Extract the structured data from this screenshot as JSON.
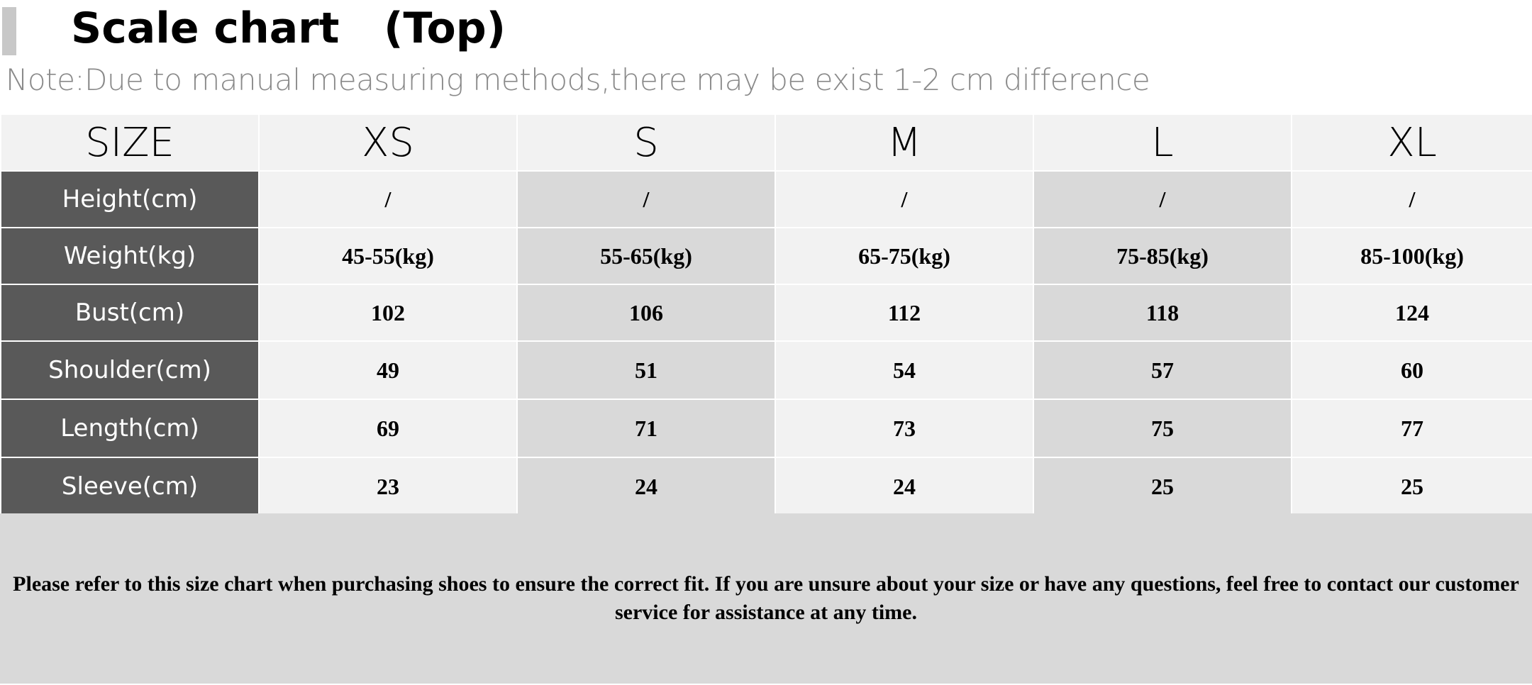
{
  "header": {
    "title": "Scale chart   (Top)",
    "note": "Note:Due to manual measuring methods,there may be exist 1-2 cm difference"
  },
  "table": {
    "corner": "SIZE",
    "sizes": [
      "XS",
      "S",
      "M",
      "L",
      "XL"
    ],
    "rows": [
      {
        "label": "Height(cm)",
        "values": [
          "/",
          "/",
          "/",
          "/",
          "/"
        ]
      },
      {
        "label": "Weight(kg)",
        "values": [
          "45-55(kg)",
          "55-65(kg)",
          "65-75(kg)",
          "75-85(kg)",
          "85-100(kg)"
        ]
      },
      {
        "label": "Bust(cm)",
        "values": [
          "102",
          "106",
          "112",
          "118",
          "124"
        ]
      },
      {
        "label": "Shoulder(cm)",
        "values": [
          "49",
          "51",
          "54",
          "57",
          "60"
        ]
      },
      {
        "label": "Length(cm)",
        "values": [
          "69",
          "71",
          "73",
          "75",
          "77"
        ]
      },
      {
        "label": "Sleeve(cm)",
        "values": [
          "23",
          "24",
          "24",
          "25",
          "25"
        ]
      }
    ]
  },
  "footer": {
    "text": "Please refer to this size chart when purchasing shoes to ensure the correct fit. If you are unsure about your size or have any questions, feel free to contact our customer service for assistance at any time."
  },
  "colors": {
    "label_background": "#595959",
    "cell_light": "#f2f2f2",
    "cell_dark": "#d9d9d9",
    "note_text": "#8a8a8a",
    "accent_bar": "#c8c8c8"
  }
}
